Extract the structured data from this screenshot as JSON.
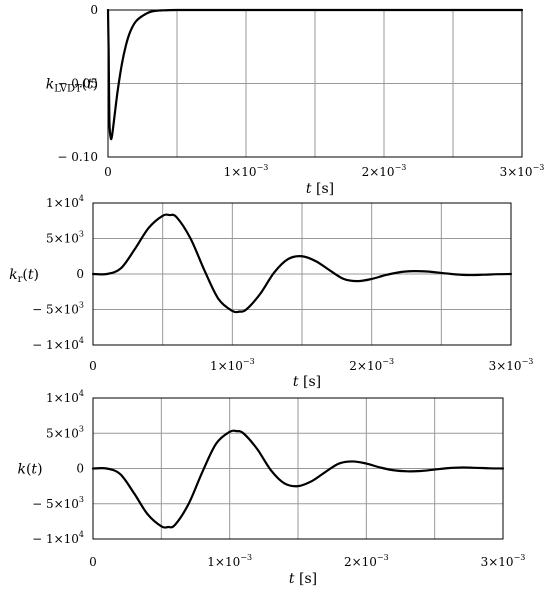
{
  "chart_data": [
    {
      "type": "line",
      "xlabel": "t [s]",
      "ylabel": "k_LVDT(t)",
      "xlim": [
        0,
        0.003
      ],
      "ylim": [
        -0.1,
        0.0
      ],
      "x_ticks": [
        0,
        0.001,
        0.002,
        0.003
      ],
      "x_tick_labels": [
        "0",
        "1×10⁻³",
        "2×10⁻³",
        "3×10⁻³"
      ],
      "y_ticks": [
        0,
        -0.05,
        -0.1
      ],
      "y_tick_labels": [
        "0",
        "− 0.05",
        "− 0.10"
      ],
      "grid": true,
      "series": [
        {
          "x": [
            0,
            5e-06,
            1e-05,
            2e-05,
            3e-05,
            5e-05,
            7e-05,
            0.0001,
            0.00013,
            0.00016,
            0.0002,
            0.00025,
            0.0003,
            0.00035,
            0.0004,
            0.0005,
            0.0006,
            0.001,
            0.0015,
            0.002,
            0.0025,
            0.003
          ],
          "y": [
            0,
            -0.03,
            -0.075,
            -0.087,
            -0.085,
            -0.07,
            -0.055,
            -0.037,
            -0.024,
            -0.015,
            -0.008,
            -0.004,
            -0.0015,
            -0.0005,
            -0.0002,
            0,
            0,
            0,
            0,
            0,
            0,
            0
          ]
        }
      ]
    },
    {
      "type": "line",
      "xlabel": "t [s]",
      "ylabel": "k_r(t)",
      "xlim": [
        0,
        0.003
      ],
      "ylim": [
        -10000,
        10000
      ],
      "x_ticks": [
        0,
        0.001,
        0.002,
        0.003
      ],
      "x_tick_labels": [
        "0",
        "1×10⁻³",
        "2×10⁻³",
        "3×10⁻³"
      ],
      "y_ticks": [
        10000,
        5000,
        0,
        -5000,
        -10000
      ],
      "y_tick_labels": [
        "1×10⁴",
        "5×10³",
        "0",
        "− 5×10³",
        "− 1×10⁴"
      ],
      "grid": true,
      "series": [
        {
          "x": [
            0,
            0.0001,
            0.0002,
            0.0003,
            0.0004,
            0.0005,
            0.00055,
            0.0006,
            0.0007,
            0.0008,
            0.0009,
            0.001,
            0.00105,
            0.0011,
            0.0012,
            0.0013,
            0.0014,
            0.0015,
            0.0016,
            0.0017,
            0.0018,
            0.0019,
            0.002,
            0.0021,
            0.0022,
            0.0023,
            0.0024,
            0.0025,
            0.0026,
            0.0027,
            0.0028,
            0.0029,
            0.003
          ],
          "y": [
            0,
            0,
            800,
            3500,
            6500,
            8200,
            8300,
            8000,
            5000,
            500,
            -3500,
            -5200,
            -5300,
            -5000,
            -2800,
            200,
            2100,
            2500,
            1800,
            500,
            -700,
            -1000,
            -700,
            -150,
            250,
            400,
            350,
            150,
            -50,
            -150,
            -100,
            -30,
            0
          ]
        }
      ]
    },
    {
      "type": "line",
      "xlabel": "t [s]",
      "ylabel": "k(t)",
      "xlim": [
        0,
        0.003
      ],
      "ylim": [
        -10000,
        10000
      ],
      "x_ticks": [
        0,
        0.001,
        0.002,
        0.003
      ],
      "x_tick_labels": [
        "0",
        "1×10⁻³",
        "2×10⁻³",
        "3×10⁻³"
      ],
      "y_ticks": [
        10000,
        5000,
        0,
        -5000,
        -10000
      ],
      "y_tick_labels": [
        "1×10⁴",
        "5×10³",
        "0",
        "− 5×10³",
        "− 1×10⁴"
      ],
      "grid": true,
      "series": [
        {
          "x": [
            0,
            0.0001,
            0.0002,
            0.0003,
            0.0004,
            0.0005,
            0.00055,
            0.0006,
            0.0007,
            0.0008,
            0.0009,
            0.001,
            0.00105,
            0.0011,
            0.0012,
            0.0013,
            0.0014,
            0.0015,
            0.0016,
            0.0017,
            0.0018,
            0.0019,
            0.002,
            0.0021,
            0.0022,
            0.0023,
            0.0024,
            0.0025,
            0.0026,
            0.0027,
            0.0028,
            0.0029,
            0.003
          ],
          "y": [
            0,
            0,
            -800,
            -3500,
            -6500,
            -8200,
            -8300,
            -8000,
            -5000,
            -500,
            3500,
            5200,
            5300,
            5000,
            2800,
            -200,
            -2100,
            -2500,
            -1800,
            -500,
            700,
            1000,
            700,
            150,
            -250,
            -400,
            -350,
            -150,
            50,
            150,
            100,
            30,
            0
          ]
        }
      ]
    }
  ]
}
